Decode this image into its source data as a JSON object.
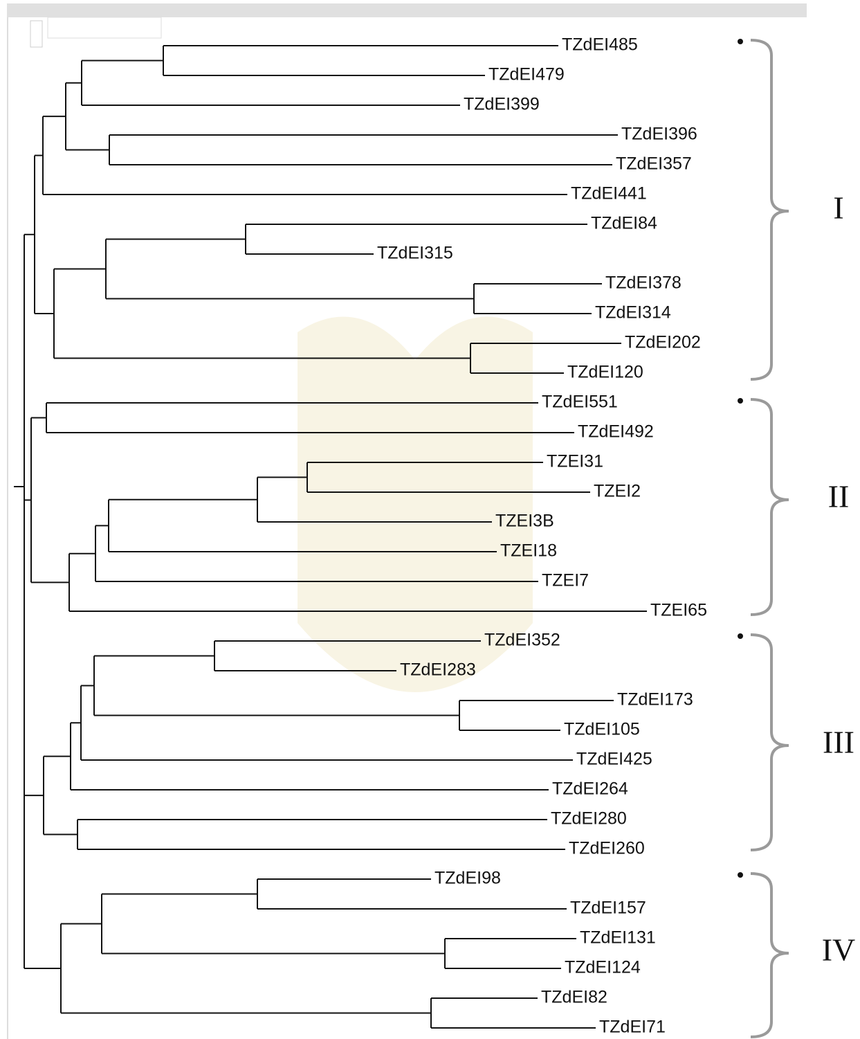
{
  "leaves": [
    "TZdEI485",
    "TZdEI479",
    "TZdEI399",
    "TZdEI396",
    "TZdEI357",
    "TZdEI441",
    "TZdEI84",
    "TZdEI315",
    "TZdEI378",
    "TZdEI314",
    "TZdEI202",
    "TZdEI120",
    "TZdEI551",
    "TZdEI492",
    "TZEI31",
    "TZEI2",
    "TZEI3B",
    "TZEI18",
    "TZEI7",
    "TZEI65",
    "TZdEI352",
    "TZdEI283",
    "TZdEI173",
    "TZdEI105",
    "TZdEI425",
    "TZdEI264",
    "TZdEI280",
    "TZdEI260",
    "TZdEI98",
    "TZdEI157",
    "TZdEI131",
    "TZdEI124",
    "TZdEI82",
    "TZdEI71"
  ],
  "groups": [
    "I",
    "II",
    "III",
    "IV"
  ]
}
